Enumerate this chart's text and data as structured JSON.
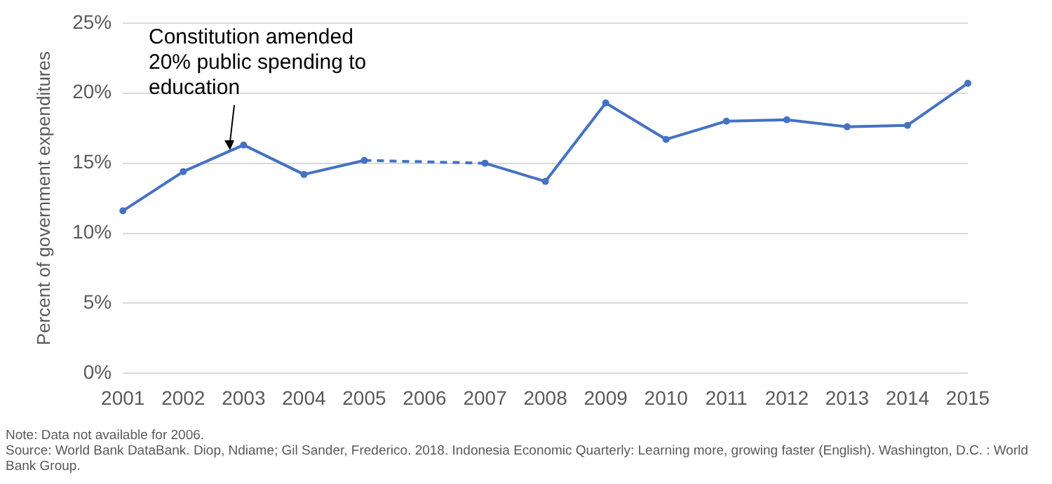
{
  "chart_data": {
    "type": "line",
    "ylabel": "Percent of government expenditures",
    "categories": [
      "2001",
      "2002",
      "2003",
      "2004",
      "2005",
      "2006",
      "2007",
      "2008",
      "2009",
      "2010",
      "2011",
      "2012",
      "2013",
      "2014",
      "2015"
    ],
    "series": [
      {
        "color": "#4472c4",
        "values": [
          11.6,
          14.4,
          16.3,
          14.2,
          15.2,
          null,
          15.0,
          13.7,
          19.3,
          16.7,
          18.0,
          18.1,
          17.6,
          17.7,
          20.7
        ]
      }
    ],
    "ylim": [
      0,
      25
    ],
    "yticks": [
      {
        "value": 0,
        "label": "0%"
      },
      {
        "value": 5,
        "label": "5%"
      },
      {
        "value": 10,
        "label": "10%"
      },
      {
        "value": 15,
        "label": "15%"
      },
      {
        "value": 20,
        "label": "20%"
      },
      {
        "value": 25,
        "label": "25%"
      }
    ],
    "grid": "y",
    "legend": false,
    "marker": "circle",
    "line_style": "solid",
    "annotations": [
      "Constitution amended 20% public spending to education",
      "Note: Data not available for 2006.",
      "Source: World Bank DataBank. Diop, Ndiame; Gil Sander, Frederico. 2018. Indonesia Economic Quarterly: Learning more, growing faster (English). Washington, D.C. : World Bank Group."
    ]
  }
}
